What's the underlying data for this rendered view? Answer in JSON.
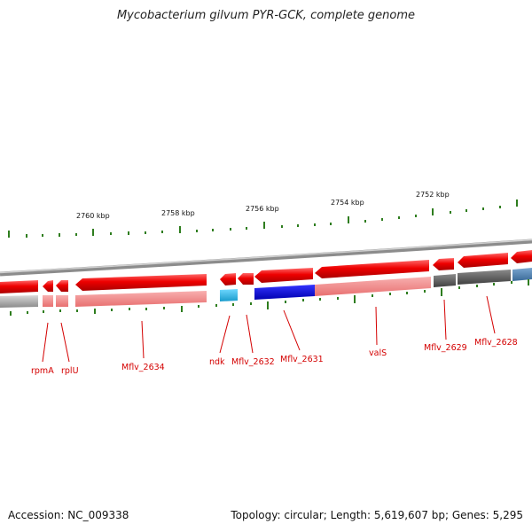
{
  "title": "Mycobacterium gilvum PYR-GCK, complete genome",
  "footer": {
    "accession": "Accession: NC_009338",
    "summary": "Topology: circular; Length: 5,619,607 bp; Genes: 5,295"
  },
  "scale_labels": [
    "2760 kbp",
    "2758 kbp",
    "2756 kbp",
    "2754 kbp",
    "2752 kbp"
  ],
  "genes": [
    {
      "name": "rpmA"
    },
    {
      "name": "rplU"
    },
    {
      "name": "Mflv_2634"
    },
    {
      "name": "ndk"
    },
    {
      "name": "Mflv_2632"
    },
    {
      "name": "Mflv_2631"
    },
    {
      "name": "valS"
    },
    {
      "name": "Mflv_2629"
    },
    {
      "name": "Mflv_2628"
    }
  ],
  "colors": {
    "arrow_red": "#ee0000",
    "track_pink": "#f08080",
    "track_gray": "#999999",
    "highlight_blue": "#0000dd",
    "light_blue": "#1eb4e6",
    "steel_blue": "#4a7fb0",
    "label_red": "#d40000",
    "tick_green": "#2e7d1e"
  }
}
